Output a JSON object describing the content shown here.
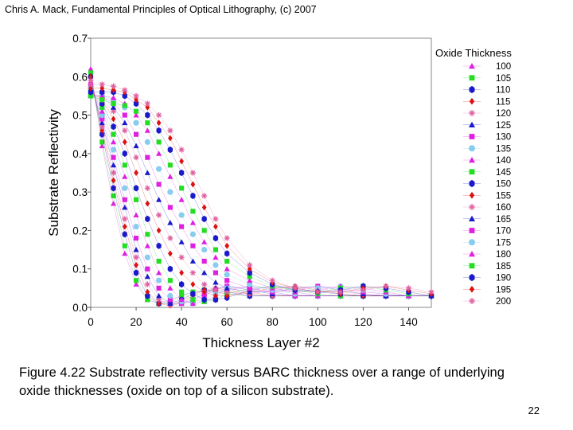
{
  "header": {
    "source": "Chris A. Mack, Fundamental Principles of Optical Lithography, (c) 2007"
  },
  "caption": {
    "line1": "Figure 4.22  Substrate reflectivity versus BARC thickness over a range of underlying",
    "line2": "oxide thicknesses (oxide on top of a silicon substrate)."
  },
  "page_number": "22",
  "chart_data": {
    "type": "scatter",
    "title": "",
    "xlabel": "Thickness Layer #2",
    "ylabel": "Substrate Reflectivity",
    "xlim": [
      0,
      150
    ],
    "ylim": [
      0,
      0.7
    ],
    "xticks": [
      "0",
      "20",
      "40",
      "60",
      "80",
      "100",
      "120",
      "140"
    ],
    "yticks": [
      "0.0",
      "0.1",
      "0.2",
      "0.3",
      "0.4",
      "0.5",
      "0.6",
      "0.7"
    ],
    "grid": false,
    "legend_title": "Oxide Thickness",
    "legend_position": "right",
    "series": [
      {
        "name": "100",
        "marker": "triangle",
        "color": "#e020e0",
        "x": [
          0,
          5,
          10,
          15,
          20,
          25,
          30,
          35,
          40,
          45,
          50,
          55,
          60,
          70,
          80,
          90,
          100,
          110,
          120,
          130,
          140,
          150
        ],
        "y": [
          0.62,
          0.42,
          0.27,
          0.14,
          0.06,
          0.02,
          0.01,
          0.02,
          0.03,
          0.04,
          0.04,
          0.04,
          0.035,
          0.03,
          0.03,
          0.03,
          0.03,
          0.03,
          0.03,
          0.03,
          0.03,
          0.03
        ]
      },
      {
        "name": "105",
        "marker": "square",
        "color": "#22dd22",
        "x": [
          0,
          5,
          10,
          15,
          20,
          25,
          30,
          35,
          40,
          45,
          50,
          55,
          60,
          70,
          80,
          90,
          100,
          110,
          120,
          130,
          140,
          150
        ],
        "y": [
          0.61,
          0.43,
          0.29,
          0.16,
          0.07,
          0.02,
          0.01,
          0.015,
          0.03,
          0.04,
          0.045,
          0.04,
          0.035,
          0.03,
          0.03,
          0.03,
          0.03,
          0.03,
          0.03,
          0.03,
          0.03,
          0.03
        ]
      },
      {
        "name": "110",
        "marker": "hexagon",
        "color": "#1a1acc",
        "x": [
          0,
          5,
          10,
          15,
          20,
          25,
          30,
          35,
          40,
          45,
          50,
          55,
          60,
          70,
          80,
          90,
          100,
          110,
          120,
          130,
          140,
          150
        ],
        "y": [
          0.6,
          0.45,
          0.31,
          0.19,
          0.09,
          0.03,
          0.01,
          0.01,
          0.02,
          0.035,
          0.045,
          0.045,
          0.04,
          0.03,
          0.03,
          0.03,
          0.03,
          0.03,
          0.03,
          0.03,
          0.03,
          0.03
        ]
      },
      {
        "name": "115",
        "marker": "diamond",
        "color": "#dd1111",
        "x": [
          0,
          5,
          10,
          15,
          20,
          25,
          30,
          35,
          40,
          45,
          50,
          55,
          60,
          70,
          80,
          90,
          100,
          110,
          120,
          130,
          140,
          150
        ],
        "y": [
          0.6,
          0.46,
          0.33,
          0.21,
          0.11,
          0.04,
          0.01,
          0.005,
          0.015,
          0.03,
          0.045,
          0.05,
          0.045,
          0.035,
          0.03,
          0.03,
          0.03,
          0.03,
          0.03,
          0.03,
          0.03,
          0.03
        ]
      },
      {
        "name": "120",
        "marker": "star",
        "color": "#e060a0",
        "x": [
          0,
          5,
          10,
          15,
          20,
          25,
          30,
          35,
          40,
          45,
          50,
          55,
          60,
          70,
          80,
          90,
          100,
          110,
          120,
          130,
          140,
          150
        ],
        "y": [
          0.59,
          0.47,
          0.35,
          0.23,
          0.13,
          0.06,
          0.02,
          0.005,
          0.01,
          0.025,
          0.04,
          0.05,
          0.05,
          0.04,
          0.03,
          0.03,
          0.03,
          0.03,
          0.03,
          0.03,
          0.03,
          0.03
        ]
      },
      {
        "name": "125",
        "marker": "triangle",
        "color": "#1a1acc",
        "x": [
          0,
          5,
          10,
          15,
          20,
          25,
          30,
          35,
          40,
          45,
          50,
          55,
          60,
          70,
          80,
          90,
          100,
          110,
          120,
          130,
          140,
          150
        ],
        "y": [
          0.58,
          0.48,
          0.37,
          0.26,
          0.15,
          0.08,
          0.03,
          0.01,
          0.01,
          0.02,
          0.035,
          0.05,
          0.055,
          0.045,
          0.035,
          0.03,
          0.03,
          0.03,
          0.03,
          0.03,
          0.03,
          0.03
        ]
      },
      {
        "name": "130",
        "marker": "square",
        "color": "#e020e0",
        "x": [
          0,
          5,
          10,
          15,
          20,
          25,
          30,
          35,
          40,
          45,
          50,
          55,
          60,
          70,
          80,
          90,
          100,
          110,
          120,
          130,
          140,
          150
        ],
        "y": [
          0.58,
          0.49,
          0.39,
          0.28,
          0.18,
          0.1,
          0.05,
          0.02,
          0.01,
          0.015,
          0.03,
          0.045,
          0.055,
          0.05,
          0.04,
          0.03,
          0.03,
          0.03,
          0.03,
          0.03,
          0.03,
          0.03
        ]
      },
      {
        "name": "135",
        "marker": "circle",
        "color": "#88ccee",
        "x": [
          0,
          5,
          10,
          15,
          20,
          25,
          30,
          35,
          40,
          45,
          50,
          55,
          60,
          70,
          80,
          90,
          100,
          110,
          120,
          130,
          140,
          150
        ],
        "y": [
          0.57,
          0.5,
          0.41,
          0.31,
          0.21,
          0.13,
          0.07,
          0.03,
          0.015,
          0.01,
          0.02,
          0.035,
          0.05,
          0.055,
          0.045,
          0.035,
          0.03,
          0.03,
          0.03,
          0.03,
          0.03,
          0.03
        ]
      },
      {
        "name": "140",
        "marker": "triangle",
        "color": "#e020e0",
        "x": [
          0,
          5,
          10,
          15,
          20,
          25,
          30,
          35,
          40,
          45,
          50,
          55,
          60,
          70,
          80,
          90,
          100,
          110,
          120,
          130,
          140,
          150
        ],
        "y": [
          0.57,
          0.51,
          0.43,
          0.34,
          0.24,
          0.16,
          0.09,
          0.05,
          0.02,
          0.01,
          0.015,
          0.03,
          0.045,
          0.055,
          0.05,
          0.04,
          0.03,
          0.03,
          0.03,
          0.03,
          0.03,
          0.03
        ]
      },
      {
        "name": "145",
        "marker": "square",
        "color": "#22dd22",
        "x": [
          0,
          5,
          10,
          15,
          20,
          25,
          30,
          35,
          40,
          45,
          50,
          55,
          60,
          70,
          80,
          90,
          100,
          110,
          120,
          130,
          140,
          150
        ],
        "y": [
          0.56,
          0.52,
          0.45,
          0.37,
          0.28,
          0.19,
          0.12,
          0.07,
          0.04,
          0.02,
          0.015,
          0.02,
          0.035,
          0.05,
          0.055,
          0.045,
          0.035,
          0.03,
          0.03,
          0.03,
          0.03,
          0.03
        ]
      },
      {
        "name": "150",
        "marker": "hexagon",
        "color": "#1a1acc",
        "x": [
          0,
          5,
          10,
          15,
          20,
          25,
          30,
          35,
          40,
          45,
          50,
          55,
          60,
          70,
          80,
          90,
          100,
          110,
          120,
          130,
          140,
          150
        ],
        "y": [
          0.56,
          0.53,
          0.47,
          0.4,
          0.31,
          0.23,
          0.16,
          0.1,
          0.06,
          0.035,
          0.02,
          0.02,
          0.025,
          0.045,
          0.055,
          0.05,
          0.04,
          0.035,
          0.03,
          0.03,
          0.03,
          0.03
        ]
      },
      {
        "name": "155",
        "marker": "diamond",
        "color": "#dd1111",
        "x": [
          0,
          5,
          10,
          15,
          20,
          25,
          30,
          35,
          40,
          45,
          50,
          55,
          60,
          70,
          80,
          90,
          100,
          110,
          120,
          130,
          140,
          150
        ],
        "y": [
          0.56,
          0.54,
          0.49,
          0.43,
          0.35,
          0.27,
          0.2,
          0.14,
          0.09,
          0.06,
          0.04,
          0.03,
          0.03,
          0.04,
          0.05,
          0.055,
          0.045,
          0.035,
          0.03,
          0.03,
          0.03,
          0.03
        ]
      },
      {
        "name": "160",
        "marker": "star",
        "color": "#e060a0",
        "x": [
          0,
          5,
          10,
          15,
          20,
          25,
          30,
          35,
          40,
          45,
          50,
          55,
          60,
          70,
          80,
          90,
          100,
          110,
          120,
          130,
          140,
          150
        ],
        "y": [
          0.55,
          0.54,
          0.51,
          0.46,
          0.39,
          0.31,
          0.24,
          0.18,
          0.13,
          0.09,
          0.06,
          0.045,
          0.04,
          0.035,
          0.045,
          0.055,
          0.05,
          0.04,
          0.035,
          0.03,
          0.03,
          0.03
        ]
      },
      {
        "name": "165",
        "marker": "triangle",
        "color": "#1a1acc",
        "x": [
          0,
          5,
          10,
          15,
          20,
          25,
          30,
          35,
          40,
          45,
          50,
          55,
          60,
          70,
          80,
          90,
          100,
          110,
          120,
          130,
          140,
          150
        ],
        "y": [
          0.55,
          0.55,
          0.52,
          0.48,
          0.42,
          0.35,
          0.28,
          0.22,
          0.17,
          0.12,
          0.09,
          0.065,
          0.05,
          0.04,
          0.04,
          0.05,
          0.055,
          0.045,
          0.035,
          0.03,
          0.03,
          0.03
        ]
      },
      {
        "name": "170",
        "marker": "square",
        "color": "#e020e0",
        "x": [
          0,
          5,
          10,
          15,
          20,
          25,
          30,
          35,
          40,
          45,
          50,
          55,
          60,
          70,
          80,
          90,
          100,
          110,
          120,
          130,
          140,
          150
        ],
        "y": [
          0.55,
          0.55,
          0.53,
          0.5,
          0.45,
          0.39,
          0.32,
          0.26,
          0.21,
          0.16,
          0.12,
          0.09,
          0.07,
          0.05,
          0.04,
          0.045,
          0.055,
          0.05,
          0.04,
          0.035,
          0.03,
          0.03
        ]
      },
      {
        "name": "175",
        "marker": "circle",
        "color": "#88ccee",
        "x": [
          0,
          5,
          10,
          15,
          20,
          25,
          30,
          35,
          40,
          45,
          50,
          55,
          60,
          70,
          80,
          90,
          100,
          110,
          120,
          130,
          140,
          150
        ],
        "y": [
          0.55,
          0.55,
          0.54,
          0.52,
          0.48,
          0.43,
          0.36,
          0.3,
          0.24,
          0.19,
          0.15,
          0.11,
          0.085,
          0.06,
          0.045,
          0.04,
          0.05,
          0.055,
          0.045,
          0.035,
          0.03,
          0.03
        ]
      },
      {
        "name": "180",
        "marker": "triangle",
        "color": "#e020e0",
        "x": [
          0,
          5,
          10,
          15,
          20,
          25,
          30,
          35,
          40,
          45,
          50,
          55,
          60,
          70,
          80,
          90,
          100,
          110,
          120,
          130,
          140,
          150
        ],
        "y": [
          0.55,
          0.55,
          0.545,
          0.53,
          0.5,
          0.46,
          0.4,
          0.34,
          0.28,
          0.22,
          0.17,
          0.13,
          0.1,
          0.07,
          0.05,
          0.04,
          0.045,
          0.055,
          0.05,
          0.04,
          0.03,
          0.03
        ]
      },
      {
        "name": "185",
        "marker": "square",
        "color": "#22dd22",
        "x": [
          0,
          5,
          10,
          15,
          20,
          25,
          30,
          35,
          40,
          45,
          50,
          55,
          60,
          70,
          80,
          90,
          100,
          110,
          120,
          130,
          140,
          150
        ],
        "y": [
          0.55,
          0.54,
          0.53,
          0.525,
          0.51,
          0.48,
          0.43,
          0.37,
          0.31,
          0.25,
          0.2,
          0.15,
          0.12,
          0.08,
          0.055,
          0.045,
          0.04,
          0.05,
          0.055,
          0.045,
          0.035,
          0.03
        ]
      },
      {
        "name": "190",
        "marker": "hexagon",
        "color": "#1a1acc",
        "x": [
          0,
          5,
          10,
          15,
          20,
          25,
          30,
          35,
          40,
          45,
          50,
          55,
          60,
          70,
          80,
          90,
          100,
          110,
          120,
          130,
          140,
          150
        ],
        "y": [
          0.56,
          0.56,
          0.56,
          0.55,
          0.53,
          0.5,
          0.46,
          0.41,
          0.35,
          0.29,
          0.23,
          0.18,
          0.14,
          0.09,
          0.06,
          0.045,
          0.04,
          0.045,
          0.055,
          0.05,
          0.04,
          0.03
        ]
      },
      {
        "name": "195",
        "marker": "diamond",
        "color": "#dd1111",
        "x": [
          0,
          5,
          10,
          15,
          20,
          25,
          30,
          35,
          40,
          45,
          50,
          55,
          60,
          70,
          80,
          90,
          100,
          110,
          120,
          130,
          140,
          150
        ],
        "y": [
          0.57,
          0.57,
          0.565,
          0.56,
          0.54,
          0.52,
          0.48,
          0.44,
          0.38,
          0.32,
          0.26,
          0.21,
          0.16,
          0.1,
          0.065,
          0.05,
          0.04,
          0.04,
          0.05,
          0.055,
          0.045,
          0.035
        ]
      },
      {
        "name": "200",
        "marker": "star",
        "color": "#e060a0",
        "x": [
          0,
          5,
          10,
          15,
          20,
          25,
          30,
          35,
          40,
          45,
          50,
          55,
          60,
          70,
          80,
          90,
          100,
          110,
          120,
          130,
          140,
          150
        ],
        "y": [
          0.58,
          0.58,
          0.575,
          0.565,
          0.55,
          0.53,
          0.5,
          0.46,
          0.41,
          0.35,
          0.29,
          0.23,
          0.18,
          0.11,
          0.07,
          0.05,
          0.04,
          0.04,
          0.045,
          0.055,
          0.05,
          0.04
        ]
      }
    ]
  }
}
